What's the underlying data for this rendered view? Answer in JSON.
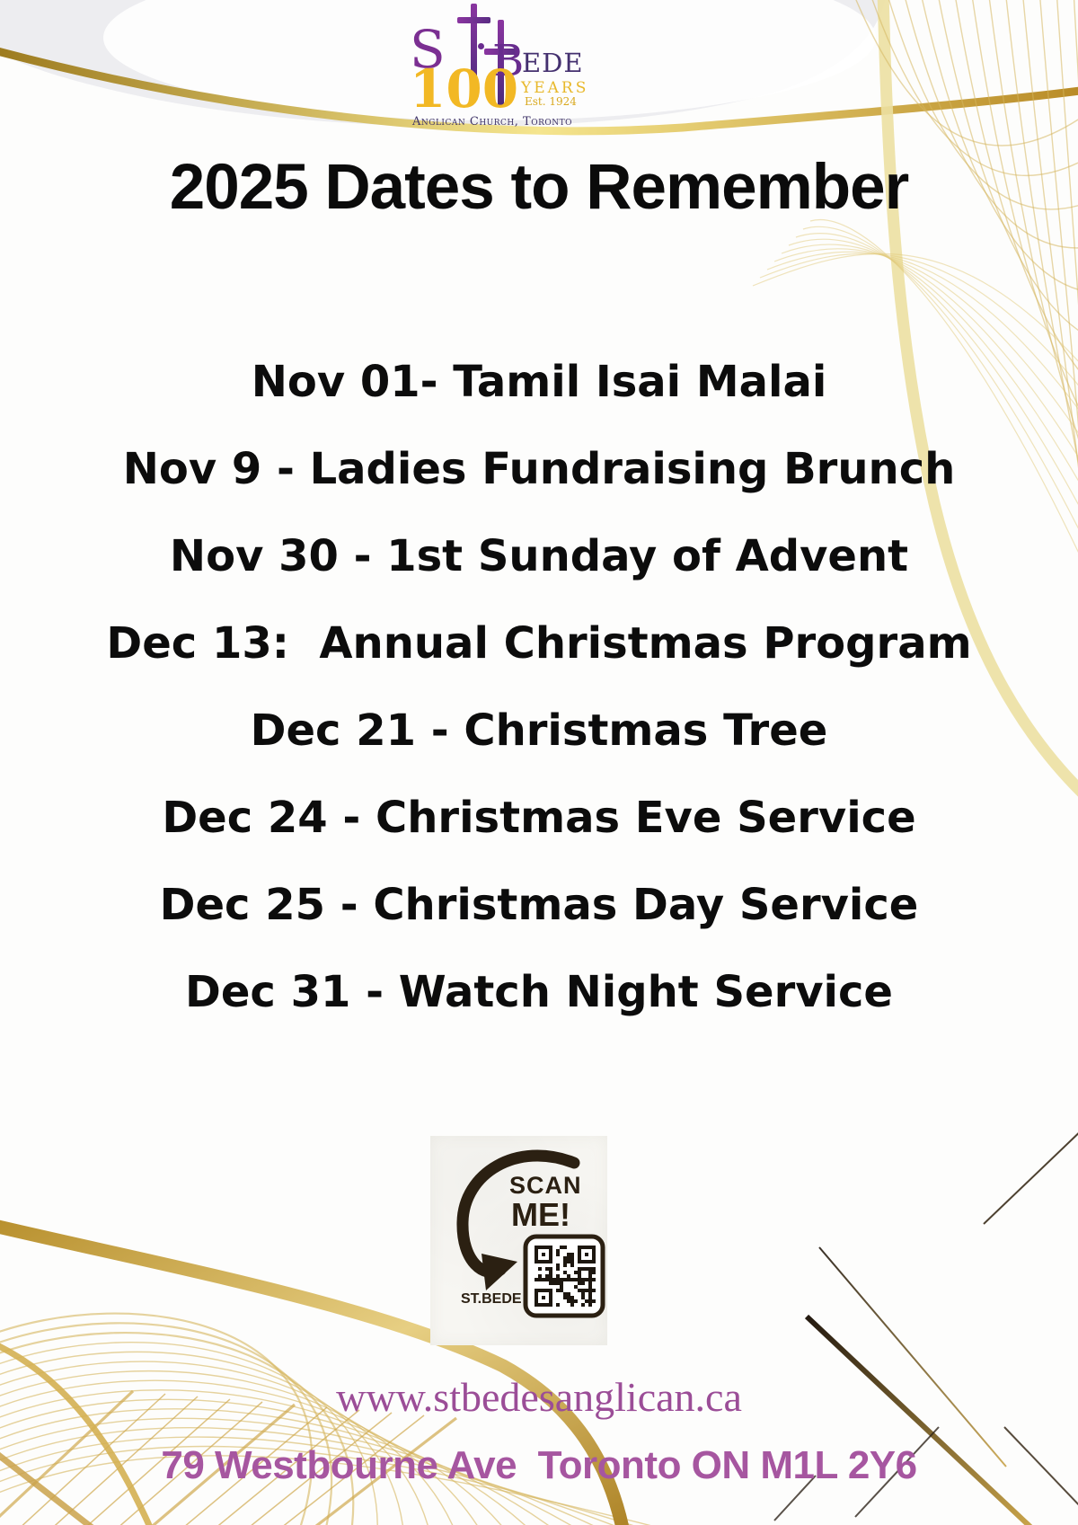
{
  "logo": {
    "st": "S",
    "bede_b": "B",
    "bede_rest": "EDE",
    "hundred": "100",
    "years": "YEARS",
    "est": "Est. 1924",
    "org": "Anglican Church, Toronto"
  },
  "title": "2025 Dates to Remember",
  "events": [
    "Nov 01- Tamil Isai Malai",
    "Nov 9 - Ladies Fundraising Brunch",
    "Nov 30 - 1st Sunday of Advent",
    "Dec 13:  Annual Christmas Program",
    "Dec 21 - Christmas Tree",
    "Dec 24 - Christmas Eve Service",
    "Dec 25 - Christmas Day Service",
    "Dec 31 - Watch Night Service"
  ],
  "scan": {
    "line1": "SCAN",
    "line2": "ME!",
    "label": "ST.BEDE"
  },
  "footer": {
    "website": "www.stbedesanglican.ca",
    "address": "79 Westbourne Ave  Toronto ON M1L 2Y6"
  },
  "colors": {
    "gold": "#c9a44a",
    "pale_gold": "#ece0a2",
    "thin_gold": "#d6b65e",
    "title_black": "#0b0b0b",
    "website_purple": "#9b4d97",
    "address_purple": "#a656a0",
    "logo_purple": "#6a2c8f",
    "logo_gold": "#f2b824",
    "arrow_brown": "#2b2012",
    "top_band_gray": "#ededf0"
  }
}
